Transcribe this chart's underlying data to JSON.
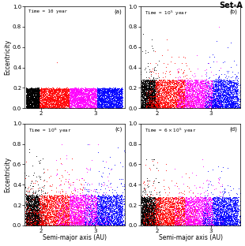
{
  "title": "Set-A",
  "subplot_labels": [
    "(a)",
    "(b)",
    "(c)",
    "(d)"
  ],
  "xlabel": "Semi-major axis (AU)",
  "ylabel": "Eccentricity",
  "xlim": [
    1.7,
    3.55
  ],
  "ylim": [
    0.0,
    1.0
  ],
  "xticks": [
    2,
    3
  ],
  "yticks": [
    0.0,
    0.2,
    0.4,
    0.6,
    0.8,
    1.0
  ],
  "colors": [
    "black",
    "red",
    "magenta",
    "blue"
  ],
  "group_ranges": [
    [
      1.72,
      1.97
    ],
    [
      1.97,
      2.52
    ],
    [
      2.52,
      3.03
    ],
    [
      3.03,
      3.5
    ]
  ],
  "n_per_group": 2000,
  "seed": 42,
  "background": "white",
  "time_strs": [
    "Time = 10 year",
    "Time = $10^5$ year",
    "Time = $10^6$ year",
    "Time = $6\\times10^5$ year"
  ]
}
